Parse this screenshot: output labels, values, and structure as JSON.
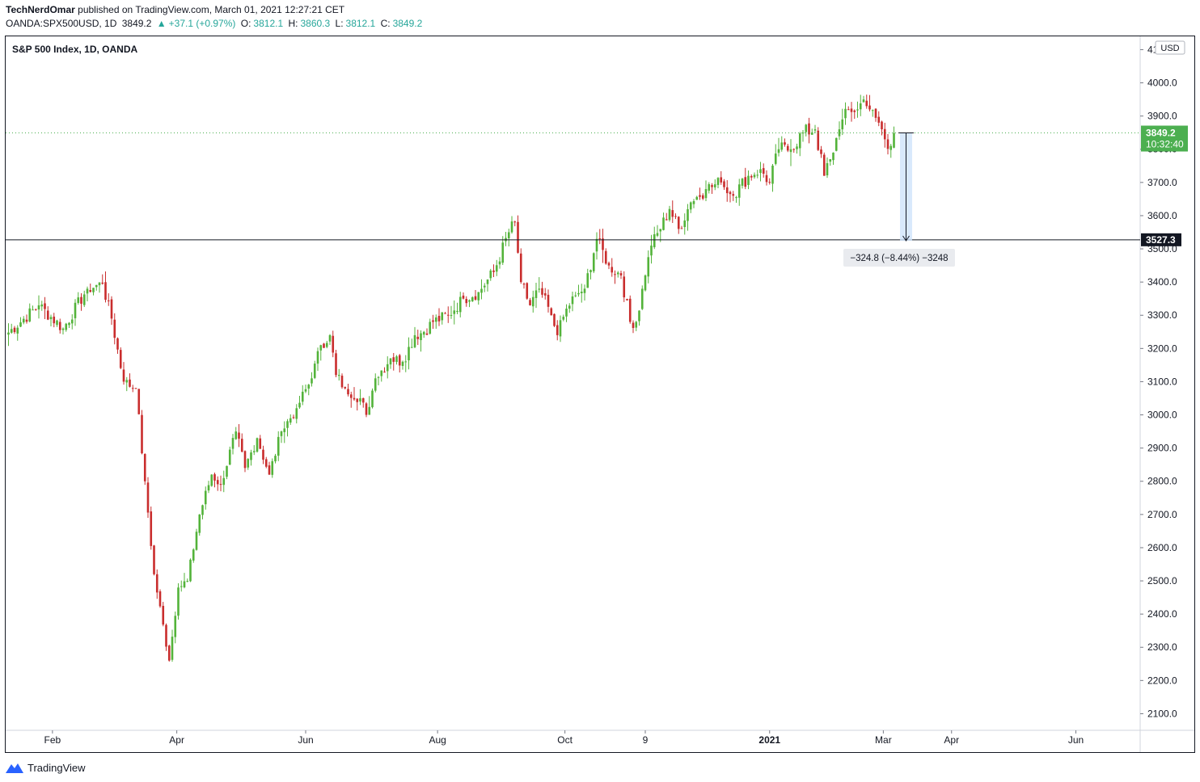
{
  "header": {
    "author": "TechNerdOmar",
    "published_text": "published on TradingView.com, March 01, 2021 12:27:21 CET",
    "symbol_line": "OANDA:SPX500USD, 1D",
    "last": "3849.2",
    "change_arrow": "▲",
    "change": "+37.1 (+0.97%)",
    "o_label": "O:",
    "o_value": "3812.1",
    "h_label": "H:",
    "h_value": "3860.3",
    "l_label": "L:",
    "l_value": "3812.1",
    "c_label": "C:",
    "c_value": "3849.2"
  },
  "footer": {
    "brand": "TradingView",
    "logo_icon": "tradingview-logo-icon"
  },
  "colors": {
    "up": "#53b33a",
    "down": "#c92d2d",
    "last_price_bg": "#4caf50",
    "measure_fill": "#cfe3fb",
    "grid": "#e0e3eb"
  },
  "chart_data": {
    "type": "candlestick",
    "title": "S&P 500 Index, 1D, OANDA",
    "currency_button": "USD",
    "y_ticks": [
      "4100.0",
      "4000.0",
      "3900.0",
      "3800.0",
      "3700.0",
      "3600.0",
      "3500.0",
      "3400.0",
      "3300.0",
      "3200.0",
      "3100.0",
      "3000.0",
      "2900.0",
      "2800.0",
      "2700.0",
      "2600.0",
      "2500.0",
      "2400.0",
      "2300.0",
      "2200.0",
      "2100.0"
    ],
    "ylim": [
      2050,
      4140
    ],
    "x_ticks": [
      {
        "label": "Feb",
        "bar": 14.5
      },
      {
        "label": "Apr",
        "bar": 55.5
      },
      {
        "label": "Jun",
        "bar": 98
      },
      {
        "label": "Aug",
        "bar": 141.5
      },
      {
        "label": "Oct",
        "bar": 183.5
      },
      {
        "label": "9",
        "bar": 210
      },
      {
        "label": "2021",
        "bar": 251
      },
      {
        "label": "Mar",
        "bar": 288.5
      },
      {
        "label": "Apr",
        "bar": 311
      },
      {
        "label": "Jun",
        "bar": 352
      }
    ],
    "last_price": {
      "value": "3849.2",
      "countdown": "10:32:40"
    },
    "horizontal_line": {
      "value": "3527.3"
    },
    "measure": {
      "from": 3849.2,
      "to": 3524.4,
      "label": "−324.8 (−8.44%) −3248",
      "start_bar": 294,
      "end_bar": 298
    },
    "key_closes": [
      {
        "bar": 0,
        "close": 3248
      },
      {
        "bar": 10,
        "close": 3330
      },
      {
        "bar": 18,
        "close": 3260
      },
      {
        "bar": 26,
        "close": 3380
      },
      {
        "bar": 31,
        "close": 3395
      },
      {
        "bar": 34,
        "close": 3290
      },
      {
        "bar": 38,
        "close": 3100
      },
      {
        "bar": 42,
        "close": 3080
      },
      {
        "bar": 45,
        "close": 2800
      },
      {
        "bar": 48,
        "close": 2520
      },
      {
        "bar": 53,
        "close": 2260
      },
      {
        "bar": 56,
        "close": 2480
      },
      {
        "bar": 59,
        "close": 2500
      },
      {
        "bar": 63,
        "close": 2700
      },
      {
        "bar": 67,
        "close": 2820
      },
      {
        "bar": 70,
        "close": 2790
      },
      {
        "bar": 75,
        "close": 2950
      },
      {
        "bar": 78,
        "close": 2840
      },
      {
        "bar": 82,
        "close": 2930
      },
      {
        "bar": 86,
        "close": 2820
      },
      {
        "bar": 90,
        "close": 2950
      },
      {
        "bar": 95,
        "close": 3020
      },
      {
        "bar": 100,
        "close": 3110
      },
      {
        "bar": 103,
        "close": 3210
      },
      {
        "bar": 106,
        "close": 3240
      },
      {
        "bar": 108,
        "close": 3120
      },
      {
        "bar": 111,
        "close": 3080
      },
      {
        "bar": 116,
        "close": 3050
      },
      {
        "bar": 118,
        "close": 3000
      },
      {
        "bar": 121,
        "close": 3110
      },
      {
        "bar": 126,
        "close": 3170
      },
      {
        "bar": 130,
        "close": 3160
      },
      {
        "bar": 134,
        "close": 3240
      },
      {
        "bar": 137,
        "close": 3250
      },
      {
        "bar": 140,
        "close": 3280
      },
      {
        "bar": 145,
        "close": 3300
      },
      {
        "bar": 150,
        "close": 3350
      },
      {
        "bar": 155,
        "close": 3370
      },
      {
        "bar": 160,
        "close": 3430
      },
      {
        "bar": 165,
        "close": 3550
      },
      {
        "bar": 167,
        "close": 3580
      },
      {
        "bar": 169,
        "close": 3400
      },
      {
        "bar": 172,
        "close": 3330
      },
      {
        "bar": 175,
        "close": 3380
      },
      {
        "bar": 179,
        "close": 3300
      },
      {
        "bar": 181,
        "close": 3240
      },
      {
        "bar": 184,
        "close": 3320
      },
      {
        "bar": 187,
        "close": 3360
      },
      {
        "bar": 190,
        "close": 3380
      },
      {
        "bar": 194,
        "close": 3530
      },
      {
        "bar": 198,
        "close": 3450
      },
      {
        "bar": 202,
        "close": 3420
      },
      {
        "bar": 205,
        "close": 3280
      },
      {
        "bar": 207,
        "close": 3280
      },
      {
        "bar": 210,
        "close": 3420
      },
      {
        "bar": 212,
        "close": 3510
      },
      {
        "bar": 215,
        "close": 3560
      },
      {
        "bar": 218,
        "close": 3620
      },
      {
        "bar": 221,
        "close": 3560
      },
      {
        "bar": 225,
        "close": 3640
      },
      {
        "bar": 230,
        "close": 3680
      },
      {
        "bar": 235,
        "close": 3700
      },
      {
        "bar": 239,
        "close": 3660
      },
      {
        "bar": 244,
        "close": 3720
      },
      {
        "bar": 248,
        "close": 3740
      },
      {
        "bar": 251,
        "close": 3700
      },
      {
        "bar": 254,
        "close": 3800
      },
      {
        "bar": 258,
        "close": 3800
      },
      {
        "bar": 262,
        "close": 3850
      },
      {
        "bar": 266,
        "close": 3860
      },
      {
        "bar": 269,
        "close": 3720
      },
      {
        "bar": 271,
        "close": 3770
      },
      {
        "bar": 274,
        "close": 3860
      },
      {
        "bar": 277,
        "close": 3920
      },
      {
        "bar": 280,
        "close": 3920
      },
      {
        "bar": 282,
        "close": 3950
      },
      {
        "bar": 284,
        "close": 3920
      },
      {
        "bar": 287,
        "close": 3880
      },
      {
        "bar": 289,
        "close": 3830
      },
      {
        "bar": 291,
        "close": 3810
      },
      {
        "bar": 292,
        "close": 3849
      }
    ]
  }
}
